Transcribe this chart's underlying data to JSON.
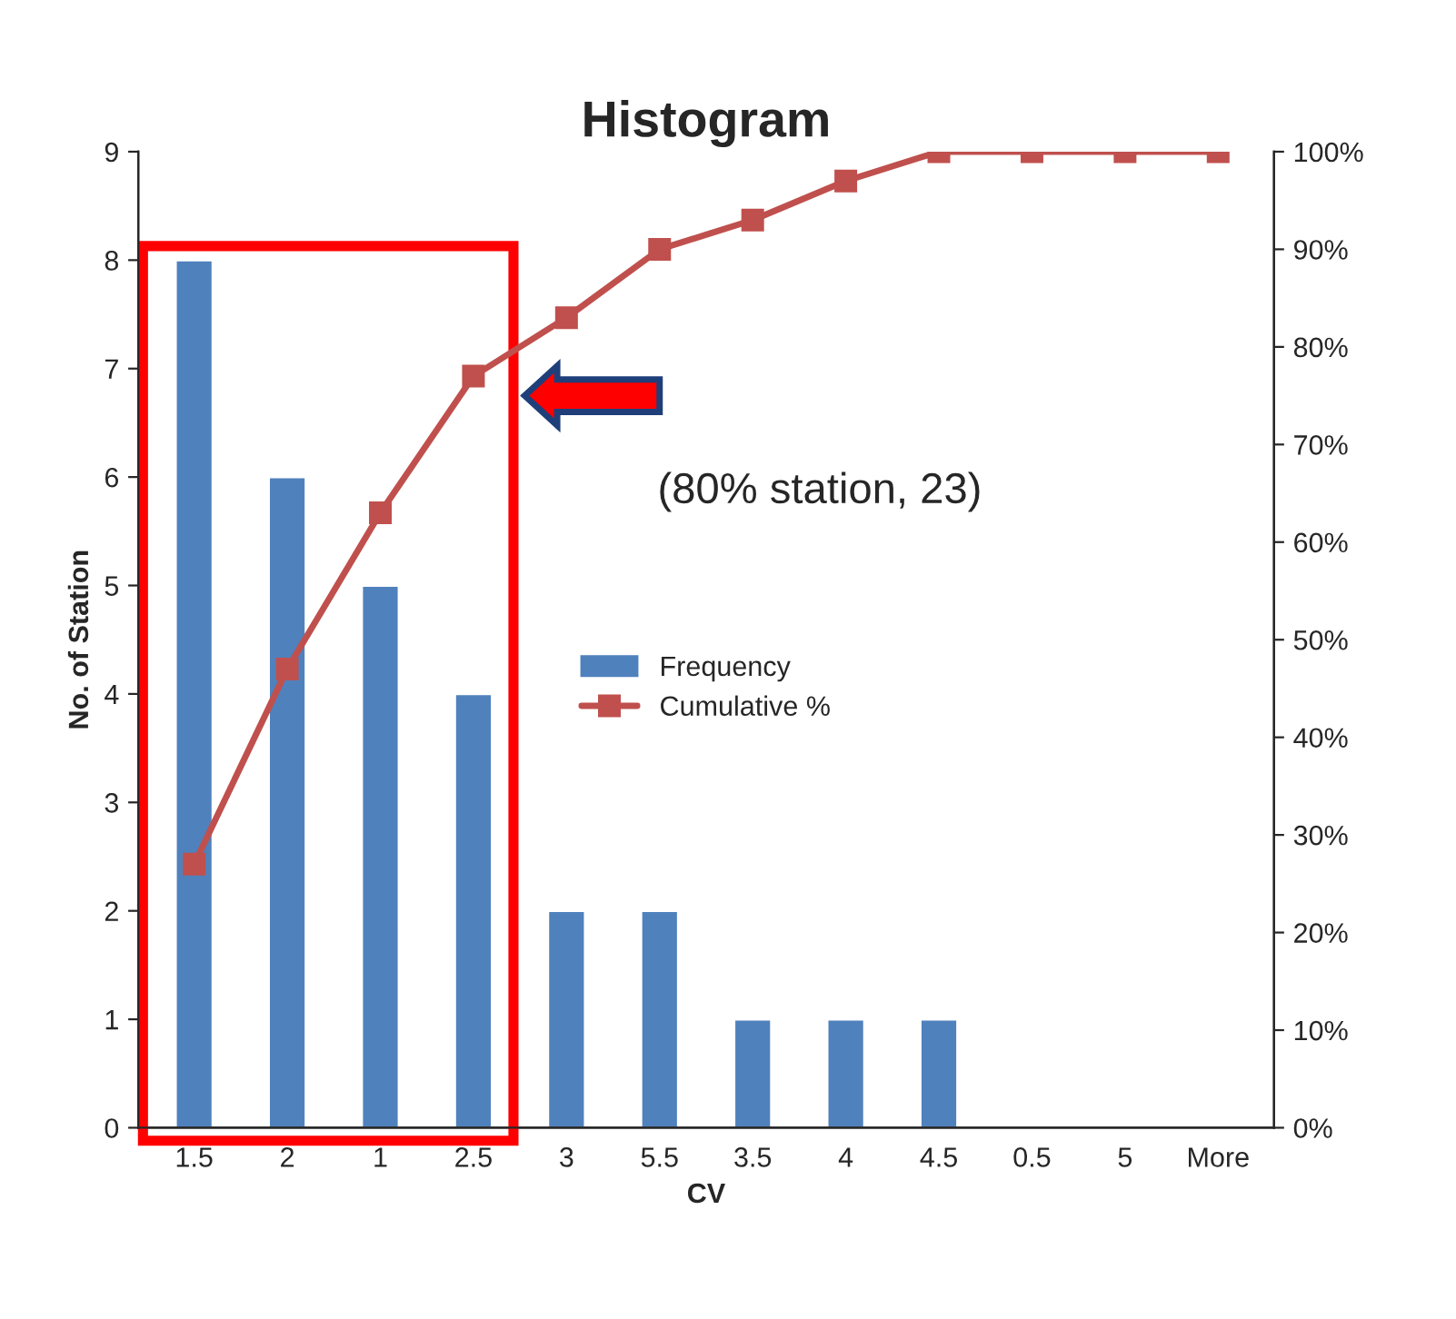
{
  "chart_data": {
    "type": "bar",
    "title": "Histogram",
    "xlabel": "CV",
    "ylabel": "No. of Station",
    "categories": [
      "1.5",
      "2",
      "1",
      "2.5",
      "3",
      "5.5",
      "3.5",
      "4",
      "4.5",
      "0.5",
      "5",
      "More"
    ],
    "series": [
      {
        "name": "Frequency",
        "color": "#4f81bd",
        "values": [
          8,
          6,
          5,
          4,
          2,
          2,
          1,
          1,
          1,
          null,
          null,
          null
        ]
      },
      {
        "name": "Cumulative %",
        "type": "line",
        "axis": "y2",
        "color": "#c0504d",
        "values": [
          27,
          47,
          63,
          77,
          83,
          90,
          93,
          97,
          100,
          100,
          100,
          100
        ]
      }
    ],
    "ylim": [
      0,
      9
    ],
    "yticks": [
      0,
      1,
      2,
      3,
      4,
      5,
      6,
      7,
      8,
      9
    ],
    "y2lim": [
      0,
      100
    ],
    "y2ticks": [
      {
        "value": 0,
        "label": "0%"
      },
      {
        "value": 10,
        "label": "10%"
      },
      {
        "value": 20,
        "label": "20%"
      },
      {
        "value": 30,
        "label": "30%"
      },
      {
        "value": 40,
        "label": "40%"
      },
      {
        "value": 50,
        "label": "50%"
      },
      {
        "value": 60,
        "label": "60%"
      },
      {
        "value": 70,
        "label": "70%"
      },
      {
        "value": 80,
        "label": "80%"
      },
      {
        "value": 90,
        "label": "90%"
      },
      {
        "value": 100,
        "label": "100%"
      }
    ],
    "annotations": [
      "(80% station, 23)"
    ],
    "marker": "square",
    "grid": false,
    "legend": "center"
  }
}
